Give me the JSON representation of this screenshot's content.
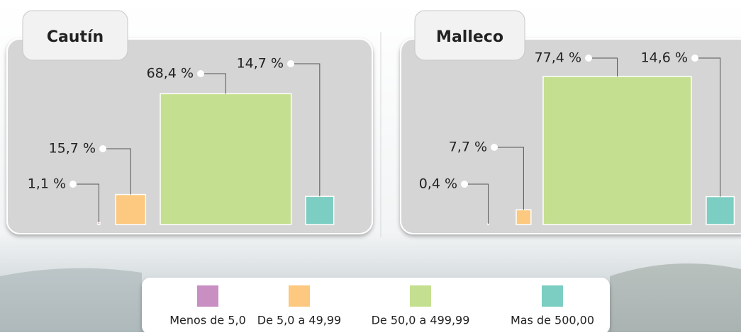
{
  "chart_data": {
    "type": "square",
    "categories": [
      "Menos de 5,0",
      "De 5,0 a 49,99",
      "De 50,0 a 499,99",
      "Mas de 500,00"
    ],
    "colors": [
      "#c98fc3",
      "#fdc87f",
      "#c4df8f",
      "#7ccdc2"
    ],
    "panels": [
      {
        "title": "Cautín",
        "values": [
          1.1,
          15.7,
          68.4,
          14.7
        ],
        "value_labels": [
          "1,1 %",
          "15,7 %",
          "68,4 %",
          "14,7 %"
        ]
      },
      {
        "title": "Malleco",
        "values": [
          0.4,
          7.7,
          77.4,
          14.6
        ],
        "value_labels": [
          "0,4 %",
          "7,7 %",
          "77,4 %",
          "14,6 %"
        ]
      }
    ]
  }
}
